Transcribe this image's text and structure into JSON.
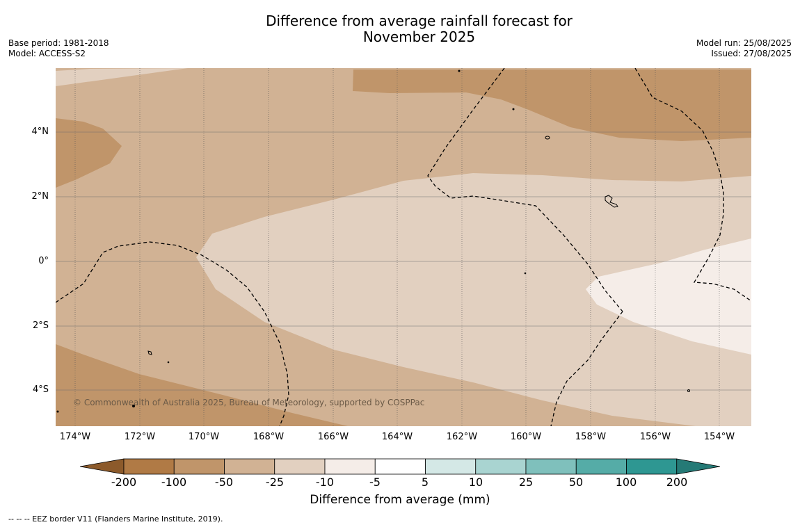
{
  "title": {
    "line1": "Difference from average rainfall forecast for",
    "line2": "November 2025"
  },
  "meta": {
    "base_period": "Base period: 1981-2018",
    "model": "Model: ACCESS-S2",
    "model_run": "Model run: 25/08/2025",
    "issued": "Issued: 27/08/2025"
  },
  "map": {
    "copyright": "© Commonwealth of Australia 2025, Bureau of Meteorology, supported by COSPPac",
    "lat_labels": [
      "4°N",
      "2°N",
      "0°",
      "2°S",
      "4°S"
    ],
    "lon_labels": [
      "174°W",
      "172°W",
      "170°W",
      "168°W",
      "166°W",
      "164°W",
      "162°W",
      "160°W",
      "158°W",
      "156°W",
      "154°W"
    ],
    "colors": {
      "ocean_drier_strong": "#c0956a",
      "ocean_drier": "#d1b294",
      "ocean_slightly_drier": "#e2d0c0",
      "ocean_near_normal": "#f5ede8"
    }
  },
  "colorbar": {
    "ticks": [
      "-200",
      "-100",
      "-50",
      "-25",
      "-10",
      "-5",
      "5",
      "10",
      "25",
      "50",
      "100",
      "200"
    ],
    "colors": [
      "#8c5a2b",
      "#b07a45",
      "#c0956a",
      "#d1b294",
      "#e2d0c0",
      "#f5ede8",
      "#ffffff",
      "#d4e8e6",
      "#a9d4d1",
      "#7fc0bc",
      "#55aca7",
      "#2e9792",
      "#257a76"
    ],
    "title": "Difference from average (mm)"
  },
  "footnote": "--  --  -- EEZ border V11 (Flanders Marine Institute, 2019)."
}
